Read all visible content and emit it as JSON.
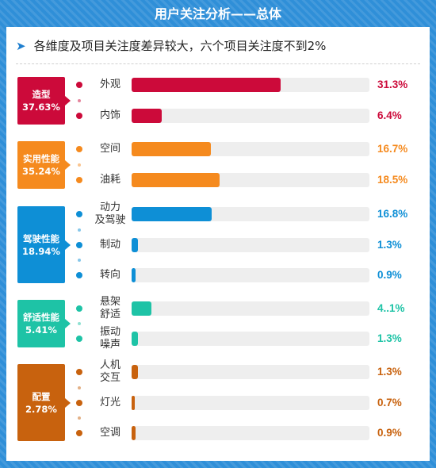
{
  "title": "用户关注分析——总体",
  "subtitle": "各维度及项目关注度差异较大，六个项目关注度不到2%",
  "chart_data": {
    "type": "bar",
    "orientation": "horizontal",
    "xlim": [
      0,
      100
    ],
    "groups": [
      {
        "name": "造型",
        "pct_label": "37.63%",
        "color": "#cc0a3a",
        "items": [
          {
            "label": "外观",
            "value": 31.3,
            "value_label": "31.3%"
          },
          {
            "label": "内饰",
            "value": 6.4,
            "value_label": "6.4%"
          }
        ]
      },
      {
        "name": "实用性能",
        "pct_label": "35.24%",
        "color": "#f58a1e",
        "items": [
          {
            "label": "空间",
            "value": 16.7,
            "value_label": "16.7%"
          },
          {
            "label": "油耗",
            "value": 18.5,
            "value_label": "18.5%"
          }
        ]
      },
      {
        "name": "驾驶性能",
        "pct_label": "18.94%",
        "color": "#0e8fd6",
        "items": [
          {
            "label": "动力\n及驾驶",
            "value": 16.8,
            "value_label": "16.8%"
          },
          {
            "label": "制动",
            "value": 1.3,
            "value_label": "1.3%"
          },
          {
            "label": "转向",
            "value": 0.9,
            "value_label": "0.9%"
          }
        ]
      },
      {
        "name": "舒适性能",
        "pct_label": "5.41%",
        "color": "#1ec3a6",
        "items": [
          {
            "label": "悬架\n舒适",
            "value": 4.1,
            "value_label": "4..1%"
          },
          {
            "label": "振动\n噪声",
            "value": 1.3,
            "value_label": "1.3%"
          }
        ]
      },
      {
        "name": "配置",
        "pct_label": "2.78%",
        "color": "#c8620e",
        "items": [
          {
            "label": "人机\n交互",
            "value": 1.3,
            "value_label": "1.3%"
          },
          {
            "label": "灯光",
            "value": 0.7,
            "value_label": "0.7%"
          },
          {
            "label": "空调",
            "value": 0.9,
            "value_label": "0.9%"
          }
        ]
      }
    ]
  }
}
